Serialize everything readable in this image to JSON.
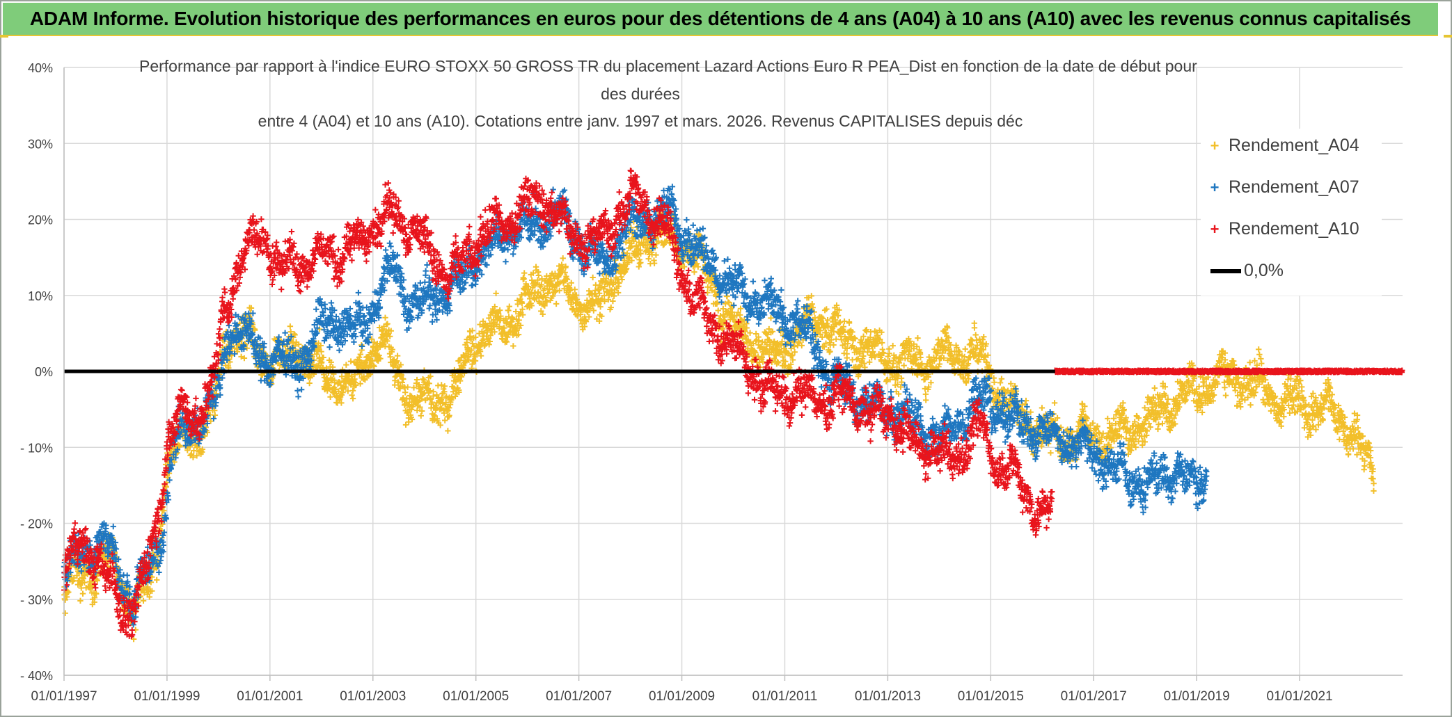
{
  "banner": {
    "title": "ADAM Informe. Evolution historique des performances en euros pour des détentions de 4 ans (A04) à 10 ans (A10) avec les revenus connus capitalisés"
  },
  "chart_data": {
    "type": "scatter",
    "title_lines": [
      "Performance par rapport à l'indice EURO STOXX 50 GROSS TR  du placement Lazard Actions Euro R PEA_Dist en fonction de la date de début pour",
      "des durées",
      "entre 4 (A04) et 10 ans (A10). Cotations entre janv. 1997 et mars. 2026. Revenus CAPITALISES depuis déc"
    ],
    "xlabel": "",
    "ylabel": "",
    "xlim": [
      1997.0,
      2023.0
    ],
    "ylim": [
      -40,
      40
    ],
    "grid": true,
    "legend_position": "top-right",
    "x_ticks": [
      1997,
      1999,
      2001,
      2003,
      2005,
      2007,
      2009,
      2011,
      2013,
      2015,
      2017,
      2019,
      2021
    ],
    "x_tick_labels": [
      "01/01/1997",
      "01/01/1999",
      "01/01/2001",
      "01/01/2003",
      "01/01/2005",
      "01/01/2007",
      "01/01/2009",
      "01/01/2011",
      "01/01/2013",
      "01/01/2015",
      "01/01/2017",
      "01/01/2019",
      "01/01/2021"
    ],
    "y_ticks": [
      40,
      30,
      20,
      10,
      0,
      -10,
      -20,
      -30,
      -40
    ],
    "y_tick_labels": [
      "40%",
      "30%",
      "20%",
      "10%",
      "0%",
      "- 10%",
      "- 20%",
      "- 30%",
      "- 40%"
    ],
    "series": [
      {
        "name": "Rendement_A04",
        "color": "#f2bf2a",
        "marker": "+",
        "x_range": [
          1997.0,
          2022.45
        ],
        "keyframes": [
          [
            1997.0,
            -28
          ],
          [
            1997.4,
            -27
          ],
          [
            1997.8,
            -24
          ],
          [
            1998.1,
            -28
          ],
          [
            1998.3,
            -31
          ],
          [
            1998.6,
            -29
          ],
          [
            1998.8,
            -25
          ],
          [
            1999.0,
            -12
          ],
          [
            1999.3,
            -9
          ],
          [
            1999.6,
            -8
          ],
          [
            1999.9,
            -5
          ],
          [
            2000.1,
            3
          ],
          [
            2000.3,
            5
          ],
          [
            2000.6,
            4
          ],
          [
            2000.9,
            2
          ],
          [
            2001.2,
            1
          ],
          [
            2001.5,
            3
          ],
          [
            2001.8,
            2
          ],
          [
            2002.0,
            0
          ],
          [
            2002.3,
            -1
          ],
          [
            2002.6,
            -2
          ],
          [
            2002.9,
            2
          ],
          [
            2003.2,
            4
          ],
          [
            2003.5,
            -1
          ],
          [
            2003.8,
            -4
          ],
          [
            2004.2,
            -4
          ],
          [
            2004.6,
            -3
          ],
          [
            2004.9,
            4
          ],
          [
            2005.3,
            5
          ],
          [
            2005.7,
            7
          ],
          [
            2006.0,
            9
          ],
          [
            2006.3,
            12
          ],
          [
            2006.7,
            11
          ],
          [
            2007.0,
            9
          ],
          [
            2007.4,
            9
          ],
          [
            2007.7,
            13
          ],
          [
            2008.0,
            15
          ],
          [
            2008.3,
            18
          ],
          [
            2008.6,
            18
          ],
          [
            2008.9,
            17
          ],
          [
            2009.2,
            16
          ],
          [
            2009.5,
            13
          ],
          [
            2009.8,
            8
          ],
          [
            2010.1,
            5
          ],
          [
            2010.4,
            4
          ],
          [
            2010.7,
            2
          ],
          [
            2011.0,
            3
          ],
          [
            2011.3,
            5
          ],
          [
            2011.6,
            7
          ],
          [
            2011.9,
            6
          ],
          [
            2012.2,
            4
          ],
          [
            2012.6,
            3
          ],
          [
            2012.9,
            2
          ],
          [
            2013.3,
            1
          ],
          [
            2013.7,
            1
          ],
          [
            2014.0,
            2
          ],
          [
            2014.4,
            2
          ],
          [
            2014.8,
            2
          ],
          [
            2015.2,
            -3
          ],
          [
            2015.6,
            -6
          ],
          [
            2016.0,
            -8
          ],
          [
            2016.4,
            -9
          ],
          [
            2016.8,
            -8
          ],
          [
            2017.2,
            -9
          ],
          [
            2017.6,
            -8
          ],
          [
            2017.9,
            -7
          ],
          [
            2018.3,
            -5
          ],
          [
            2018.7,
            -3
          ],
          [
            2019.1,
            -2
          ],
          [
            2019.5,
            -1
          ],
          [
            2019.9,
            -1
          ],
          [
            2020.2,
            -2
          ],
          [
            2020.6,
            -4
          ],
          [
            2021.0,
            -4
          ],
          [
            2021.3,
            -5
          ],
          [
            2021.6,
            -5
          ],
          [
            2021.9,
            -7
          ],
          [
            2022.2,
            -10
          ],
          [
            2022.45,
            -14
          ]
        ]
      },
      {
        "name": "Rendement_A07",
        "color": "#1f77c0",
        "marker": "+",
        "x_range": [
          1997.0,
          2019.2
        ],
        "keyframes": [
          [
            1997.0,
            -26
          ],
          [
            1997.4,
            -24
          ],
          [
            1997.8,
            -22
          ],
          [
            1998.1,
            -27
          ],
          [
            1998.3,
            -30
          ],
          [
            1998.6,
            -27
          ],
          [
            1998.9,
            -22
          ],
          [
            1999.1,
            -10
          ],
          [
            1999.4,
            -8
          ],
          [
            1999.7,
            -6
          ],
          [
            2000.0,
            -3
          ],
          [
            2000.2,
            6
          ],
          [
            2000.5,
            5
          ],
          [
            2000.8,
            2
          ],
          [
            2001.1,
            2
          ],
          [
            2001.4,
            1
          ],
          [
            2001.7,
            2
          ],
          [
            2002.0,
            6
          ],
          [
            2002.3,
            7
          ],
          [
            2002.6,
            5
          ],
          [
            2002.9,
            7
          ],
          [
            2003.1,
            10
          ],
          [
            2003.4,
            14
          ],
          [
            2003.7,
            9
          ],
          [
            2004.0,
            9
          ],
          [
            2004.3,
            10
          ],
          [
            2004.7,
            12
          ],
          [
            2005.0,
            15
          ],
          [
            2005.4,
            17
          ],
          [
            2005.8,
            19
          ],
          [
            2006.2,
            19
          ],
          [
            2006.6,
            21
          ],
          [
            2006.9,
            18
          ],
          [
            2007.2,
            16
          ],
          [
            2007.5,
            14
          ],
          [
            2007.9,
            19
          ],
          [
            2008.3,
            20
          ],
          [
            2008.7,
            21
          ],
          [
            2009.0,
            19
          ],
          [
            2009.3,
            16
          ],
          [
            2009.6,
            14
          ],
          [
            2009.9,
            12
          ],
          [
            2010.2,
            10
          ],
          [
            2010.5,
            9
          ],
          [
            2010.8,
            8
          ],
          [
            2011.1,
            7
          ],
          [
            2011.4,
            5
          ],
          [
            2011.7,
            2
          ],
          [
            2011.9,
            -1
          ],
          [
            2012.2,
            -2
          ],
          [
            2012.5,
            -4
          ],
          [
            2012.8,
            -5
          ],
          [
            2013.1,
            -5
          ],
          [
            2013.4,
            -6
          ],
          [
            2013.8,
            -8
          ],
          [
            2014.1,
            -9
          ],
          [
            2014.4,
            -6
          ],
          [
            2014.7,
            -4
          ],
          [
            2015.0,
            -4
          ],
          [
            2015.3,
            -6
          ],
          [
            2015.7,
            -7
          ],
          [
            2016.0,
            -8
          ],
          [
            2016.4,
            -9
          ],
          [
            2016.8,
            -10
          ],
          [
            2017.1,
            -11
          ],
          [
            2017.4,
            -13
          ],
          [
            2017.7,
            -14
          ],
          [
            2018.0,
            -15
          ],
          [
            2018.3,
            -14
          ],
          [
            2018.6,
            -13
          ],
          [
            2018.9,
            -15
          ],
          [
            2019.2,
            -14
          ]
        ]
      },
      {
        "name": "Rendement_A10",
        "color": "#e8141c",
        "marker": "+",
        "x_range": [
          1997.0,
          2016.2
        ],
        "keyframes": [
          [
            1997.0,
            -25
          ],
          [
            1997.3,
            -23
          ],
          [
            1997.6,
            -24
          ],
          [
            1997.9,
            -28
          ],
          [
            1998.2,
            -32
          ],
          [
            1998.5,
            -29
          ],
          [
            1998.8,
            -20
          ],
          [
            1999.0,
            -10
          ],
          [
            1999.3,
            -5
          ],
          [
            1999.6,
            -6
          ],
          [
            1999.9,
            -2
          ],
          [
            2000.1,
            8
          ],
          [
            2000.3,
            12
          ],
          [
            2000.6,
            17
          ],
          [
            2000.9,
            18
          ],
          [
            2001.2,
            13
          ],
          [
            2001.5,
            15
          ],
          [
            2001.8,
            14
          ],
          [
            2002.1,
            16
          ],
          [
            2002.4,
            15
          ],
          [
            2002.7,
            17
          ],
          [
            2003.0,
            19
          ],
          [
            2003.3,
            21
          ],
          [
            2003.6,
            20
          ],
          [
            2003.9,
            18
          ],
          [
            2004.2,
            15
          ],
          [
            2004.5,
            12
          ],
          [
            2004.8,
            15
          ],
          [
            2005.1,
            18
          ],
          [
            2005.4,
            19
          ],
          [
            2005.7,
            20
          ],
          [
            2006.0,
            22
          ],
          [
            2006.3,
            23
          ],
          [
            2006.6,
            20
          ],
          [
            2006.9,
            18
          ],
          [
            2007.2,
            17
          ],
          [
            2007.5,
            18
          ],
          [
            2007.8,
            21
          ],
          [
            2008.1,
            23
          ],
          [
            2008.4,
            21
          ],
          [
            2008.7,
            19
          ],
          [
            2008.9,
            15
          ],
          [
            2009.1,
            11
          ],
          [
            2009.4,
            8
          ],
          [
            2009.7,
            5
          ],
          [
            2010.0,
            3
          ],
          [
            2010.3,
            1
          ],
          [
            2010.6,
            -2
          ],
          [
            2010.9,
            -3
          ],
          [
            2011.2,
            -3
          ],
          [
            2011.5,
            -3
          ],
          [
            2011.8,
            -4
          ],
          [
            2012.1,
            -3
          ],
          [
            2012.4,
            -4
          ],
          [
            2012.7,
            -6
          ],
          [
            2013.0,
            -5
          ],
          [
            2013.3,
            -8
          ],
          [
            2013.6,
            -10
          ],
          [
            2013.9,
            -10
          ],
          [
            2014.2,
            -12
          ],
          [
            2014.5,
            -10
          ],
          [
            2014.8,
            -7
          ],
          [
            2015.1,
            -12
          ],
          [
            2015.4,
            -13
          ],
          [
            2015.7,
            -16
          ],
          [
            2016.0,
            -19
          ],
          [
            2016.2,
            -18
          ]
        ]
      },
      {
        "name": "Rendement_A10_zero",
        "legend": false,
        "color": "#e8141c",
        "marker": "+",
        "x_range": [
          2016.25,
          2023.0
        ],
        "constant": 0
      },
      {
        "name": "0,0%",
        "type": "line",
        "color": "#000000",
        "x": [
          1997.0,
          2016.25
        ],
        "y": [
          0,
          0
        ]
      }
    ],
    "legend": [
      {
        "label": "Rendement_A04",
        "color": "#f2bf2a",
        "marker": "+"
      },
      {
        "label": "Rendement_A07",
        "color": "#1f77c0",
        "marker": "+"
      },
      {
        "label": "Rendement_A10",
        "color": "#e8141c",
        "marker": "+"
      },
      {
        "label": "0,0%",
        "color": "#000000",
        "marker": "line"
      }
    ]
  }
}
